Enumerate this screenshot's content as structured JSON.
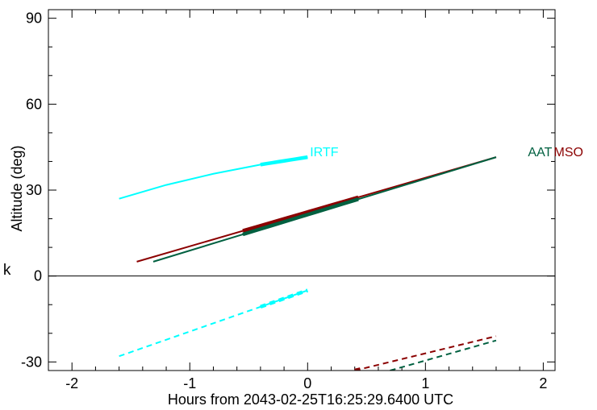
{
  "chart_data": {
    "type": "line",
    "title": "",
    "xlabel": "Hours from 2043-02-25T16:25:29.6400 UTC",
    "ylabel": "Altitude (deg)",
    "xlim": [
      -2.2,
      2.1
    ],
    "ylim": [
      -33,
      93
    ],
    "xticks": [
      -2,
      -1,
      0,
      1,
      2
    ],
    "xtick_labels": [
      "-2",
      "-1",
      "0",
      "1",
      "2"
    ],
    "yticks": [
      -30,
      0,
      30,
      60,
      90
    ],
    "ytick_labels": [
      "-30",
      "0",
      "30",
      "60",
      "90"
    ],
    "zero_line": 0,
    "grid": false,
    "series": [
      {
        "name": "IRTF",
        "color": "#00ffff",
        "style": "solid",
        "x": [
          -1.6,
          -1.2,
          -0.8,
          -0.4,
          0.0
        ],
        "y": [
          27.0,
          31.8,
          35.7,
          38.9,
          41.5
        ],
        "thick_x": [
          -0.4,
          0.0
        ]
      },
      {
        "name": "IRTF",
        "color": "#00ffff",
        "style": "dashed",
        "x": [
          -1.6,
          0.0
        ],
        "y": [
          -28.0,
          -5.0
        ],
        "thick_x": [
          -0.4,
          0.0
        ]
      },
      {
        "name": "MSO",
        "color": "#8b0000",
        "style": "solid",
        "x": [
          -1.45,
          1.6
        ],
        "y": [
          5.0,
          41.5
        ],
        "thick_x": [
          -0.55,
          0.43
        ]
      },
      {
        "name": "AAT",
        "color": "#006040",
        "style": "solid",
        "x": [
          -1.31,
          1.6
        ],
        "y": [
          5.0,
          41.5
        ],
        "thick_x": [
          -0.55,
          0.43
        ]
      },
      {
        "name": "MSO",
        "color": "#8b0000",
        "style": "dashed",
        "x": [
          0.4,
          1.6
        ],
        "y": [
          -33.0,
          -21.0
        ],
        "thick_x": [
          0.4,
          0.46
        ]
      },
      {
        "name": "AAT",
        "color": "#006040",
        "style": "dashed",
        "x": [
          0.7,
          1.6
        ],
        "y": [
          -33.0,
          -22.5
        ],
        "thick_x": []
      }
    ],
    "annotations": [
      {
        "text": "IRTF",
        "color": "#00ffff",
        "x": 0.02,
        "y": 43.5,
        "anchor": "start"
      },
      {
        "text": "AAT",
        "color": "#006040",
        "x": 1.87,
        "y": 43.5,
        "anchor": "start"
      },
      {
        "text": "MSO",
        "color": "#8b0000",
        "x": 2.09,
        "y": 43.5,
        "anchor": "start"
      }
    ]
  },
  "stray_text": "k"
}
